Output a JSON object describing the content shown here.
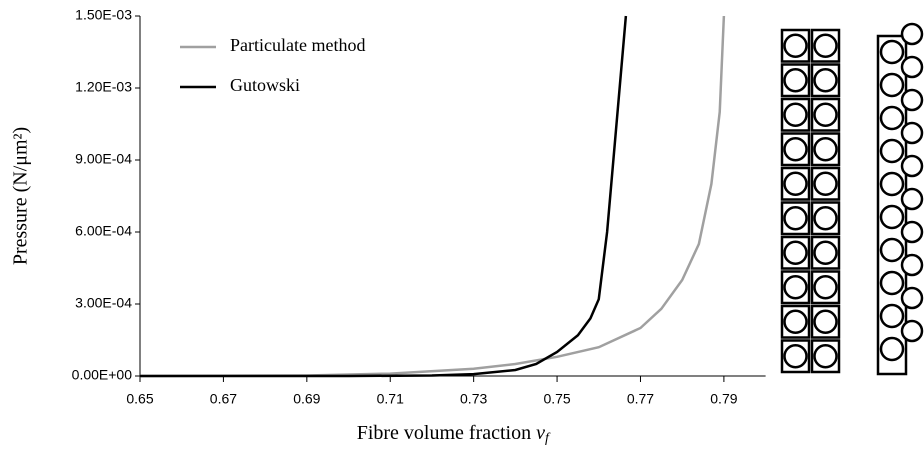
{
  "chart_data": {
    "type": "line",
    "x_label": "Fibre volume fraction",
    "x_symbol": "v",
    "x_symbol_subscript": "f",
    "y_label": "Pressure (N/μm²)",
    "xlim": [
      0.65,
      0.8
    ],
    "xticks": [
      0.65,
      0.67,
      0.69,
      0.71,
      0.73,
      0.75,
      0.77,
      0.79
    ],
    "ylim": [
      0,
      0.0015
    ],
    "yticks": [
      {
        "value": 0,
        "label": "0.00E+00"
      },
      {
        "value": 0.0003,
        "label": "3.00E-04"
      },
      {
        "value": 0.0006,
        "label": "6.00E-04"
      },
      {
        "value": 0.0009,
        "label": "9.00E-04"
      },
      {
        "value": 0.0012,
        "label": "1.20E-03"
      },
      {
        "value": 0.0015,
        "label": "1.50E-03"
      }
    ],
    "legend": "upper left",
    "series": [
      {
        "name": "Particulate method",
        "color": "#a0a0a0",
        "x": [
          0.65,
          0.69,
          0.71,
          0.73,
          0.74,
          0.75,
          0.76,
          0.77,
          0.775,
          0.78,
          0.784,
          0.787,
          0.789,
          0.79
        ],
        "values": [
          0,
          2e-06,
          1e-05,
          3e-05,
          5e-05,
          8e-05,
          0.00012,
          0.0002,
          0.00028,
          0.0004,
          0.00055,
          0.0008,
          0.0011,
          0.0015
        ]
      },
      {
        "name": "Gutowski",
        "color": "#000000",
        "x": [
          0.65,
          0.7,
          0.72,
          0.73,
          0.74,
          0.745,
          0.75,
          0.755,
          0.758,
          0.76,
          0.762,
          0.764,
          0.7665
        ],
        "values": [
          0,
          0,
          2e-06,
          8e-06,
          2.5e-05,
          5e-05,
          0.0001,
          0.00017,
          0.00024,
          0.00032,
          0.0006,
          0.001,
          0.0015
        ]
      }
    ]
  }
}
